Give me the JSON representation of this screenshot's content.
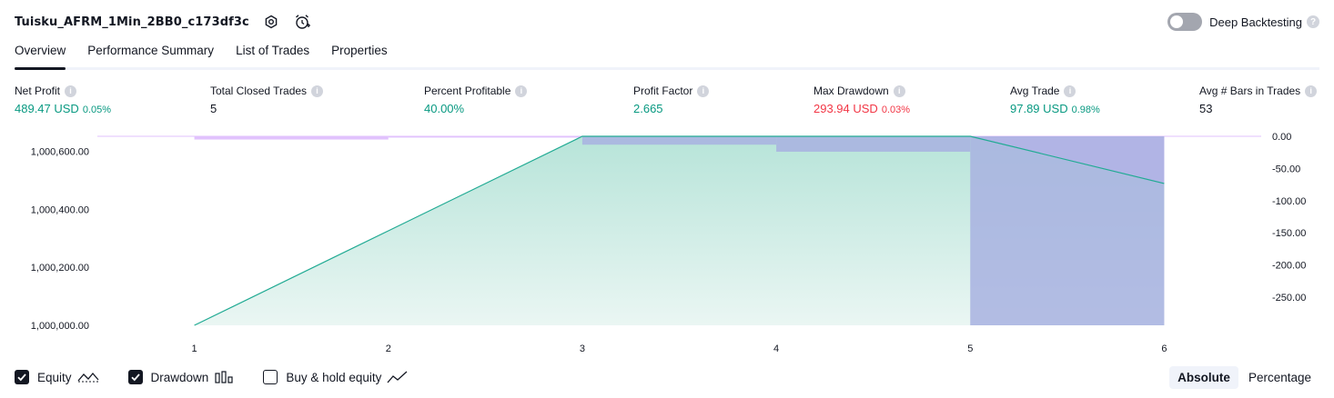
{
  "header": {
    "title": "Tuisku_AFRM_1Min_2BB0_c173df3c"
  },
  "deep_backtesting": {
    "label": "Deep Backtesting",
    "help": "?"
  },
  "tabs": [
    {
      "label": "Overview"
    },
    {
      "label": "Performance Summary"
    },
    {
      "label": "List of Trades"
    },
    {
      "label": "Properties"
    }
  ],
  "metrics": [
    {
      "label": "Net Profit",
      "value": "489.47 USD",
      "pct": "0.05%"
    },
    {
      "label": "Total Closed Trades",
      "value": "5",
      "pct": ""
    },
    {
      "label": "Percent Profitable",
      "value": "40.00%",
      "pct": ""
    },
    {
      "label": "Profit Factor",
      "value": "2.665",
      "pct": ""
    },
    {
      "label": "Max Drawdown",
      "value": "293.94 USD",
      "pct": "0.03%"
    },
    {
      "label": "Avg Trade",
      "value": "97.89 USD",
      "pct": "0.98%"
    },
    {
      "label": "Avg # Bars in Trades",
      "value": "53",
      "pct": ""
    }
  ],
  "colors": {
    "profit": "#089981",
    "loss": "#f23645",
    "equity_line": "#22ab94",
    "equity_fill": "#c5e9e1",
    "drawdown_bar": "#e1c2fd",
    "drawdown_overlap": "#a8b2e0"
  },
  "chart_data": {
    "type": "area",
    "x": [
      1,
      2,
      3,
      4,
      5,
      6
    ],
    "series": [
      {
        "values": [
          1000000.0,
          1000326.0,
          1000652.0,
          1000652.0,
          1000652.0,
          1000489.47
        ]
      }
    ],
    "drawdown": {
      "x": [
        1.5,
        2.5,
        3.5,
        4.5,
        5.5
      ],
      "values": [
        -5,
        -2,
        -13,
        -24,
        -293.94
      ]
    },
    "equity_drawdown": {
      "x": [
        3.5,
        4.5,
        5.5
      ],
      "values": [
        -13,
        -24,
        -293.94
      ]
    },
    "xlim": [
      0.5,
      6.5
    ],
    "ylim_left": [
      1000000,
      1000652
    ],
    "ylim_right": [
      -293.94,
      0
    ],
    "yticks_left": [
      1000000,
      1000200,
      1000400,
      1000600
    ],
    "yticks_left_labels": [
      "1,000,000.00",
      "1,000,200.00",
      "1,000,400.00",
      "1,000,600.00"
    ],
    "yticks_right": [
      0,
      -50,
      -100,
      -150,
      -200,
      -250
    ],
    "yticks_right_labels": [
      "0.00",
      "-50.00",
      "-100.00",
      "-150.00",
      "-200.00",
      "-250.00"
    ],
    "xtick_labels": [
      "1",
      "2",
      "3",
      "4",
      "5",
      "6"
    ]
  },
  "legend": {
    "equity": {
      "label": "Equity",
      "checked": true
    },
    "drawdown": {
      "label": "Drawdown",
      "checked": true
    },
    "buy_hold": {
      "label": "Buy & hold equity",
      "checked": false
    }
  },
  "view_toggle": {
    "absolute": "Absolute",
    "percentage": "Percentage",
    "selected": "Absolute"
  }
}
